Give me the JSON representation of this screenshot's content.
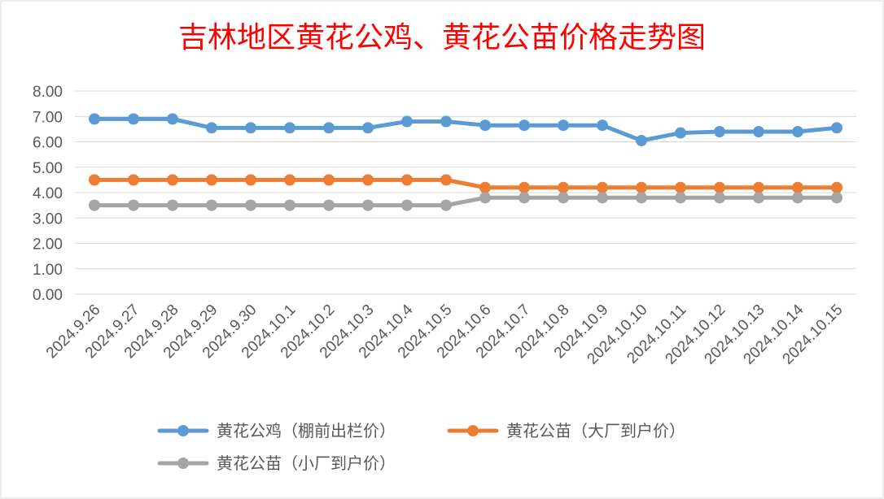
{
  "chart_data": {
    "type": "line",
    "title": "吉林地区黄花公鸡、黄花公苗价格走势图",
    "xlabel": "",
    "ylabel": "",
    "ylim": [
      0,
      8
    ],
    "yticks": [
      "0.00",
      "1.00",
      "2.00",
      "3.00",
      "4.00",
      "5.00",
      "6.00",
      "7.00",
      "8.00"
    ],
    "grid": true,
    "legend_position": "bottom",
    "categories": [
      "2024.9.26",
      "2024.9.27",
      "2024.9.28",
      "2024.9.29",
      "2024.9.30",
      "2024.10.1",
      "2024.10.2",
      "2024.10.3",
      "2024.10.4",
      "2024.10.5",
      "2024.10.6",
      "2024.10.7",
      "2024.10.8",
      "2024.10.9",
      "2024.10.10",
      "2024.10.11",
      "2024.10.12",
      "2024.10.13",
      "2024.10.14",
      "2024.10.15"
    ],
    "series": [
      {
        "name": "黄花公鸡（棚前出栏价）",
        "color": "#5b9bd5",
        "values": [
          6.9,
          6.9,
          6.9,
          6.55,
          6.55,
          6.55,
          6.55,
          6.55,
          6.8,
          6.8,
          6.65,
          6.65,
          6.65,
          6.65,
          6.05,
          6.35,
          6.4,
          6.4,
          6.4,
          6.55
        ]
      },
      {
        "name": "黄花公苗（大厂到户价）",
        "color": "#ed7d31",
        "values": [
          4.5,
          4.5,
          4.5,
          4.5,
          4.5,
          4.5,
          4.5,
          4.5,
          4.5,
          4.5,
          4.2,
          4.2,
          4.2,
          4.2,
          4.2,
          4.2,
          4.2,
          4.2,
          4.2,
          4.2
        ]
      },
      {
        "name": "黄花公苗（小厂到户价）",
        "color": "#a5a5a5",
        "values": [
          3.5,
          3.5,
          3.5,
          3.5,
          3.5,
          3.5,
          3.5,
          3.5,
          3.5,
          3.5,
          3.8,
          3.8,
          3.8,
          3.8,
          3.8,
          3.8,
          3.8,
          3.8,
          3.8,
          3.8
        ]
      }
    ]
  },
  "colors": {
    "title": "#ff0000",
    "grid": "#d9d9d9",
    "tick_text": "#595959",
    "frame": "#d9d9d9"
  }
}
